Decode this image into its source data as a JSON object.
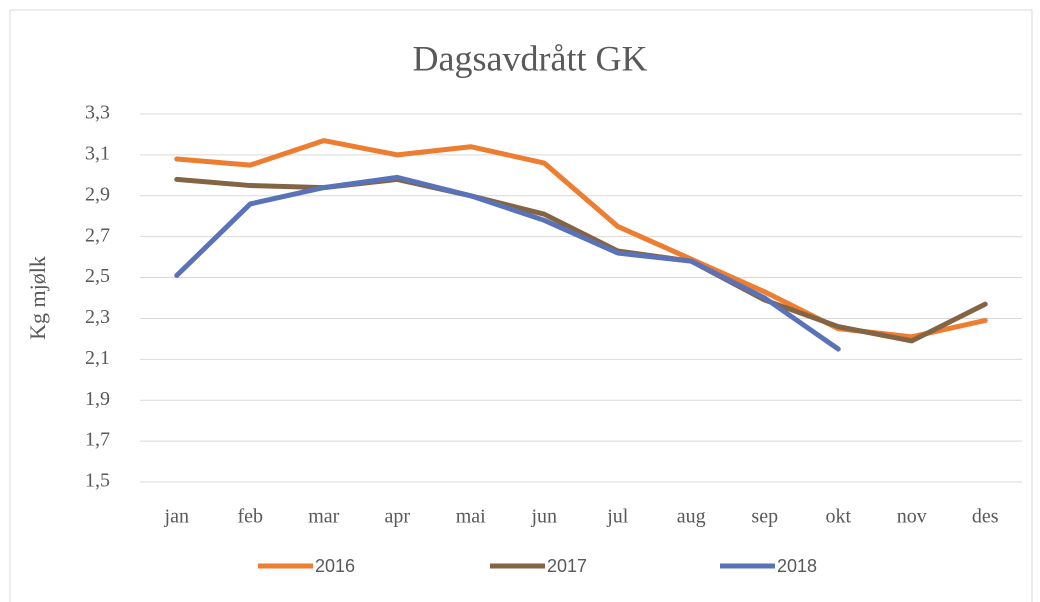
{
  "chart_data": {
    "type": "line",
    "title": "Dagsavdrått GK",
    "y_label": "Kg mjølk",
    "categories": [
      "jan",
      "feb",
      "mar",
      "apr",
      "mai",
      "jun",
      "jul",
      "aug",
      "sep",
      "okt",
      "nov",
      "des"
    ],
    "series": [
      {
        "name": "2016",
        "color": "#ED7D31",
        "values": [
          3.08,
          3.05,
          3.17,
          3.1,
          3.14,
          3.06,
          2.75,
          2.59,
          2.43,
          2.25,
          2.21,
          2.29
        ]
      },
      {
        "name": "2017",
        "color": "#836443",
        "values": [
          2.98,
          2.95,
          2.94,
          2.98,
          2.9,
          2.81,
          2.63,
          2.58,
          2.39,
          2.26,
          2.19,
          2.37
        ]
      },
      {
        "name": "2018",
        "color": "#5A72B8",
        "values": [
          2.51,
          2.86,
          2.94,
          2.99,
          2.9,
          2.78,
          2.62,
          2.58,
          2.4,
          2.15,
          null,
          null
        ]
      }
    ],
    "ylim": [
      1.5,
      3.3
    ],
    "yticks": [
      {
        "value": 1.5,
        "label": "1,5"
      },
      {
        "value": 1.7,
        "label": "1,7"
      },
      {
        "value": 1.9,
        "label": "1,9"
      },
      {
        "value": 2.1,
        "label": "2,1"
      },
      {
        "value": 2.3,
        "label": "2,3"
      },
      {
        "value": 2.5,
        "label": "2,5"
      },
      {
        "value": 2.7,
        "label": "2,7"
      },
      {
        "value": 2.9,
        "label": "2,9"
      },
      {
        "value": 3.1,
        "label": "3,1"
      },
      {
        "value": 3.3,
        "label": "3,3"
      }
    ],
    "grid": true,
    "legend": "bottom"
  }
}
